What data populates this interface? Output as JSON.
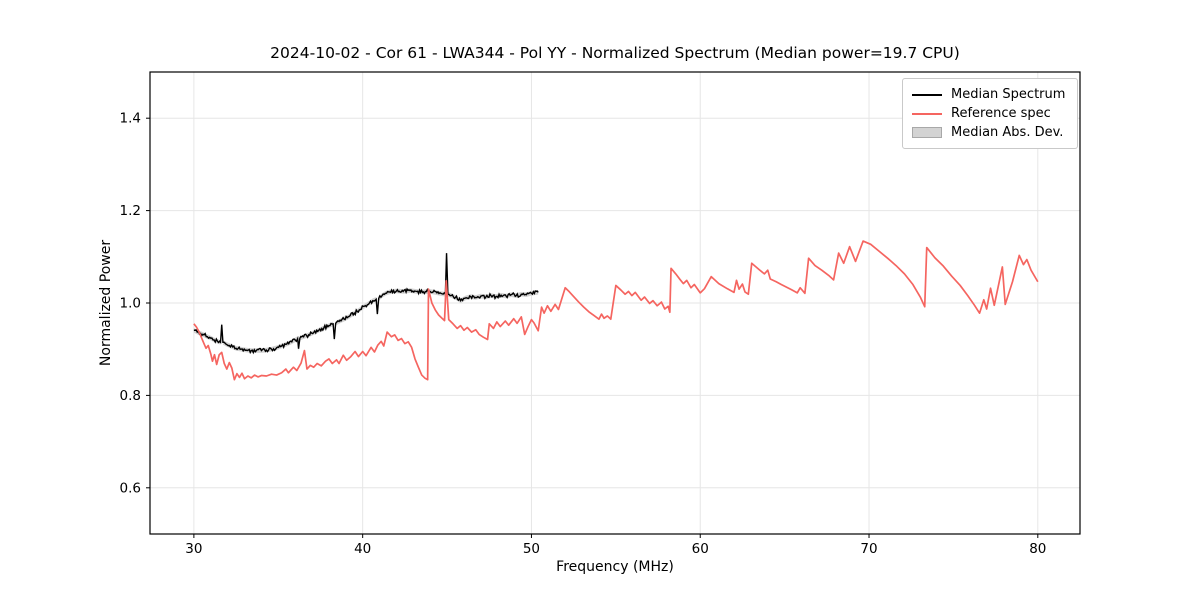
{
  "chart_data": {
    "type": "line",
    "title": "2024-10-02 - Cor 61 - LWA344 - Pol YY - Normalized Spectrum (Median power=19.7 CPU)",
    "xlabel": "Frequency (MHz)",
    "ylabel": "Normalized Power",
    "xlim": [
      27.4,
      82.5
    ],
    "ylim": [
      0.5,
      1.5
    ],
    "xticks": [
      30,
      40,
      50,
      60,
      70,
      80
    ],
    "yticks": [
      0.6,
      0.8,
      1.0,
      1.2,
      1.4
    ],
    "grid": true,
    "grid_color": "#e6e6e6",
    "legend": {
      "position": "upper right",
      "items": [
        {
          "label": "Median Spectrum",
          "type": "line",
          "color": "#000000"
        },
        {
          "label": "Reference spec",
          "type": "line",
          "color": "#f56560"
        },
        {
          "label": "Median Abs. Dev.",
          "type": "patch",
          "fill": "#d3d3d3",
          "edge": "#a8a8a8"
        }
      ]
    },
    "series": [
      {
        "name": "Median Spectrum",
        "color": "#000000",
        "line_width": 1.4,
        "noise_amplitude": 0.0045,
        "noise_step_mhz": 0.06,
        "points": [
          [
            30.0,
            0.941
          ],
          [
            30.2,
            0.937
          ],
          [
            30.4,
            0.934
          ],
          [
            30.6,
            0.931
          ],
          [
            30.8,
            0.927
          ],
          [
            31.0,
            0.924
          ],
          [
            31.2,
            0.92
          ],
          [
            31.4,
            0.917
          ],
          [
            31.58,
            0.915
          ],
          [
            31.65,
            0.953
          ],
          [
            31.72,
            0.915
          ],
          [
            31.9,
            0.911
          ],
          [
            32.1,
            0.908
          ],
          [
            32.3,
            0.905
          ],
          [
            32.5,
            0.902
          ],
          [
            32.8,
            0.9
          ],
          [
            33.1,
            0.898
          ],
          [
            33.4,
            0.897
          ],
          [
            33.7,
            0.897
          ],
          [
            34.0,
            0.897
          ],
          [
            34.3,
            0.898
          ],
          [
            34.6,
            0.9
          ],
          [
            34.9,
            0.903
          ],
          [
            35.2,
            0.907
          ],
          [
            35.5,
            0.911
          ],
          [
            35.8,
            0.916
          ],
          [
            36.0,
            0.92
          ],
          [
            36.15,
            0.923
          ],
          [
            36.2,
            0.901
          ],
          [
            36.28,
            0.924
          ],
          [
            36.5,
            0.927
          ],
          [
            36.8,
            0.931
          ],
          [
            37.1,
            0.936
          ],
          [
            37.4,
            0.941
          ],
          [
            37.7,
            0.946
          ],
          [
            38.0,
            0.951
          ],
          [
            38.25,
            0.955
          ],
          [
            38.32,
            0.922
          ],
          [
            38.4,
            0.956
          ],
          [
            38.6,
            0.96
          ],
          [
            38.9,
            0.965
          ],
          [
            39.2,
            0.971
          ],
          [
            39.5,
            0.978
          ],
          [
            39.8,
            0.985
          ],
          [
            40.1,
            0.993
          ],
          [
            40.4,
            1.0
          ],
          [
            40.6,
            1.005
          ],
          [
            40.8,
            1.008
          ],
          [
            40.87,
            0.976
          ],
          [
            40.95,
            1.01
          ],
          [
            41.15,
            1.016
          ],
          [
            41.35,
            1.021
          ],
          [
            41.6,
            1.024
          ],
          [
            42.0,
            1.026
          ],
          [
            42.4,
            1.025
          ],
          [
            42.8,
            1.027
          ],
          [
            43.2,
            1.025
          ],
          [
            43.6,
            1.024
          ],
          [
            44.0,
            1.025
          ],
          [
            44.4,
            1.022
          ],
          [
            44.7,
            1.02
          ],
          [
            44.9,
            1.019
          ],
          [
            44.97,
            1.108
          ],
          [
            45.05,
            1.019
          ],
          [
            45.25,
            1.016
          ],
          [
            45.5,
            1.012
          ],
          [
            45.8,
            1.005
          ],
          [
            46.1,
            1.011
          ],
          [
            46.4,
            1.014
          ],
          [
            46.7,
            1.012
          ],
          [
            47.0,
            1.015
          ],
          [
            47.3,
            1.013
          ],
          [
            47.6,
            1.016
          ],
          [
            47.9,
            1.014
          ],
          [
            48.2,
            1.017
          ],
          [
            48.5,
            1.015
          ],
          [
            48.8,
            1.018
          ],
          [
            49.1,
            1.016
          ],
          [
            49.4,
            1.019
          ],
          [
            49.7,
            1.018
          ],
          [
            50.0,
            1.021
          ],
          [
            50.4,
            1.023
          ]
        ]
      },
      {
        "name": "Reference spec",
        "color": "#f56560",
        "line_width": 1.7,
        "points": [
          [
            30.0,
            0.955
          ],
          [
            30.15,
            0.948
          ],
          [
            30.3,
            0.938
          ],
          [
            30.45,
            0.925
          ],
          [
            30.6,
            0.912
          ],
          [
            30.72,
            0.902
          ],
          [
            30.85,
            0.908
          ],
          [
            31.0,
            0.89
          ],
          [
            31.1,
            0.874
          ],
          [
            31.22,
            0.888
          ],
          [
            31.35,
            0.867
          ],
          [
            31.5,
            0.888
          ],
          [
            31.65,
            0.893
          ],
          [
            31.8,
            0.869
          ],
          [
            31.95,
            0.857
          ],
          [
            32.1,
            0.871
          ],
          [
            32.25,
            0.859
          ],
          [
            32.4,
            0.834
          ],
          [
            32.55,
            0.847
          ],
          [
            32.7,
            0.839
          ],
          [
            32.85,
            0.848
          ],
          [
            33.0,
            0.836
          ],
          [
            33.2,
            0.842
          ],
          [
            33.4,
            0.838
          ],
          [
            33.6,
            0.844
          ],
          [
            33.8,
            0.84
          ],
          [
            34.0,
            0.843
          ],
          [
            34.3,
            0.842
          ],
          [
            34.6,
            0.846
          ],
          [
            34.9,
            0.844
          ],
          [
            35.2,
            0.849
          ],
          [
            35.45,
            0.857
          ],
          [
            35.6,
            0.849
          ],
          [
            35.9,
            0.861
          ],
          [
            36.1,
            0.854
          ],
          [
            36.35,
            0.87
          ],
          [
            36.55,
            0.897
          ],
          [
            36.7,
            0.857
          ],
          [
            36.9,
            0.865
          ],
          [
            37.1,
            0.861
          ],
          [
            37.3,
            0.869
          ],
          [
            37.55,
            0.864
          ],
          [
            37.8,
            0.874
          ],
          [
            38.0,
            0.879
          ],
          [
            38.2,
            0.869
          ],
          [
            38.45,
            0.877
          ],
          [
            38.6,
            0.869
          ],
          [
            38.85,
            0.887
          ],
          [
            39.05,
            0.876
          ],
          [
            39.3,
            0.884
          ],
          [
            39.55,
            0.895
          ],
          [
            39.75,
            0.884
          ],
          [
            40.0,
            0.895
          ],
          [
            40.2,
            0.886
          ],
          [
            40.5,
            0.904
          ],
          [
            40.7,
            0.894
          ],
          [
            40.9,
            0.909
          ],
          [
            41.1,
            0.917
          ],
          [
            41.25,
            0.907
          ],
          [
            41.45,
            0.937
          ],
          [
            41.7,
            0.927
          ],
          [
            41.9,
            0.931
          ],
          [
            42.1,
            0.919
          ],
          [
            42.3,
            0.923
          ],
          [
            42.5,
            0.912
          ],
          [
            42.7,
            0.916
          ],
          [
            42.9,
            0.904
          ],
          [
            43.1,
            0.879
          ],
          [
            43.3,
            0.861
          ],
          [
            43.5,
            0.844
          ],
          [
            43.7,
            0.837
          ],
          [
            43.85,
            0.834
          ],
          [
            43.9,
            1.03
          ],
          [
            44.1,
            1.0
          ],
          [
            44.3,
            0.985
          ],
          [
            44.5,
            0.974
          ],
          [
            44.7,
            0.967
          ],
          [
            44.85,
            0.962
          ],
          [
            44.95,
            1.048
          ],
          [
            45.1,
            0.964
          ],
          [
            45.35,
            0.955
          ],
          [
            45.6,
            0.945
          ],
          [
            45.8,
            0.951
          ],
          [
            46.0,
            0.941
          ],
          [
            46.2,
            0.947
          ],
          [
            46.45,
            0.937
          ],
          [
            46.7,
            0.942
          ],
          [
            46.9,
            0.932
          ],
          [
            47.15,
            0.926
          ],
          [
            47.4,
            0.921
          ],
          [
            47.5,
            0.955
          ],
          [
            47.75,
            0.945
          ],
          [
            47.95,
            0.959
          ],
          [
            48.15,
            0.949
          ],
          [
            48.45,
            0.961
          ],
          [
            48.65,
            0.952
          ],
          [
            48.95,
            0.966
          ],
          [
            49.15,
            0.956
          ],
          [
            49.4,
            0.97
          ],
          [
            49.6,
            0.932
          ],
          [
            49.8,
            0.949
          ],
          [
            50.0,
            0.964
          ],
          [
            50.15,
            0.957
          ],
          [
            50.4,
            0.94
          ],
          [
            50.6,
            0.991
          ],
          [
            50.75,
            0.978
          ],
          [
            50.95,
            0.994
          ],
          [
            51.15,
            0.982
          ],
          [
            51.4,
            0.997
          ],
          [
            51.6,
            0.986
          ],
          [
            52.0,
            1.033
          ],
          [
            52.25,
            1.024
          ],
          [
            52.5,
            1.014
          ],
          [
            52.8,
            1.002
          ],
          [
            53.1,
            0.991
          ],
          [
            53.4,
            0.981
          ],
          [
            53.7,
            0.973
          ],
          [
            54.0,
            0.965
          ],
          [
            54.15,
            0.976
          ],
          [
            54.3,
            0.967
          ],
          [
            54.5,
            0.972
          ],
          [
            54.7,
            0.965
          ],
          [
            55.0,
            1.038
          ],
          [
            55.3,
            1.028
          ],
          [
            55.55,
            1.019
          ],
          [
            55.75,
            1.025
          ],
          [
            55.95,
            1.016
          ],
          [
            56.15,
            1.023
          ],
          [
            56.5,
            1.006
          ],
          [
            56.7,
            1.013
          ],
          [
            57.0,
            0.999
          ],
          [
            57.2,
            1.005
          ],
          [
            57.45,
            0.994
          ],
          [
            57.7,
            1.002
          ],
          [
            57.9,
            0.987
          ],
          [
            58.1,
            0.993
          ],
          [
            58.2,
            0.98
          ],
          [
            58.27,
            1.075
          ],
          [
            58.55,
            1.063
          ],
          [
            58.8,
            1.051
          ],
          [
            59.0,
            1.042
          ],
          [
            59.2,
            1.049
          ],
          [
            59.45,
            1.033
          ],
          [
            59.65,
            1.04
          ],
          [
            60.0,
            1.022
          ],
          [
            60.25,
            1.031
          ],
          [
            60.65,
            1.057
          ],
          [
            61.1,
            1.042
          ],
          [
            61.6,
            1.031
          ],
          [
            62.0,
            1.023
          ],
          [
            62.15,
            1.049
          ],
          [
            62.3,
            1.03
          ],
          [
            62.5,
            1.041
          ],
          [
            62.65,
            1.024
          ],
          [
            62.85,
            1.019
          ],
          [
            63.05,
            1.086
          ],
          [
            63.5,
            1.072
          ],
          [
            63.8,
            1.063
          ],
          [
            64.0,
            1.071
          ],
          [
            64.15,
            1.052
          ],
          [
            64.5,
            1.046
          ],
          [
            64.8,
            1.04
          ],
          [
            65.4,
            1.029
          ],
          [
            65.75,
            1.022
          ],
          [
            65.92,
            1.033
          ],
          [
            66.2,
            1.021
          ],
          [
            66.42,
            1.097
          ],
          [
            66.8,
            1.081
          ],
          [
            67.2,
            1.071
          ],
          [
            67.6,
            1.06
          ],
          [
            67.9,
            1.05
          ],
          [
            68.2,
            1.108
          ],
          [
            68.5,
            1.086
          ],
          [
            68.85,
            1.122
          ],
          [
            69.2,
            1.09
          ],
          [
            69.65,
            1.134
          ],
          [
            70.1,
            1.127
          ],
          [
            70.6,
            1.112
          ],
          [
            71.1,
            1.097
          ],
          [
            71.6,
            1.081
          ],
          [
            72.1,
            1.063
          ],
          [
            72.6,
            1.04
          ],
          [
            73.05,
            1.012
          ],
          [
            73.3,
            0.992
          ],
          [
            73.42,
            1.12
          ],
          [
            73.9,
            1.098
          ],
          [
            74.4,
            1.08
          ],
          [
            74.9,
            1.058
          ],
          [
            75.4,
            1.038
          ],
          [
            75.85,
            1.016
          ],
          [
            76.25,
            0.995
          ],
          [
            76.55,
            0.978
          ],
          [
            76.8,
            1.007
          ],
          [
            76.97,
            0.987
          ],
          [
            77.2,
            1.032
          ],
          [
            77.42,
            0.995
          ],
          [
            77.9,
            1.078
          ],
          [
            78.07,
            0.997
          ],
          [
            78.5,
            1.046
          ],
          [
            78.9,
            1.103
          ],
          [
            79.15,
            1.083
          ],
          [
            79.35,
            1.094
          ],
          [
            79.6,
            1.071
          ],
          [
            80.0,
            1.046
          ]
        ]
      },
      {
        "name": "Median Abs. Dev.",
        "band_around": "Median Spectrum",
        "half_width": 0.005,
        "fill": "#d3d3d3"
      }
    ]
  }
}
